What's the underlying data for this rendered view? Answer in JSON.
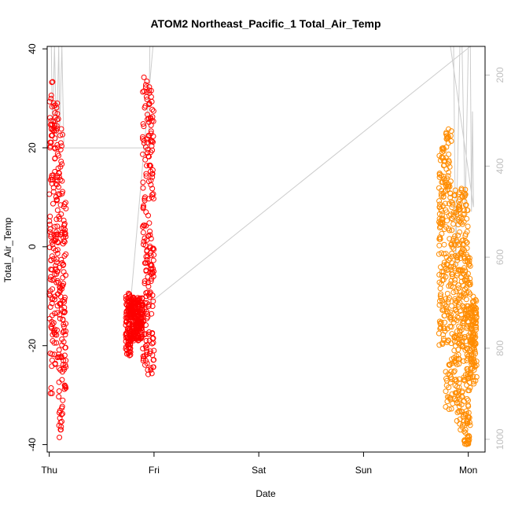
{
  "chart_data": {
    "type": "scatter",
    "title": "ATOM2 Northeast_Pacific_1 Total_Air_Temp",
    "xlabel": "Date",
    "ylabel": "Total_Air_Temp",
    "x_ticks": [
      "Thu",
      "Fri",
      "Sat",
      "Sun",
      "Mon"
    ],
    "xlim": [
      -0.02,
      4.16
    ],
    "ylim": [
      -41.5,
      40.5
    ],
    "y_ticks": [
      -40,
      -20,
      0,
      20,
      40
    ],
    "y2_ticks": [
      200,
      400,
      600,
      800,
      1000
    ],
    "y2lim": [
      1028,
      137
    ],
    "grid": false,
    "marker": "open-circle",
    "series": [
      {
        "color": "#ff0000",
        "segments": [
          {
            "x0": 0.0,
            "x1": 0.04,
            "y_min": -30,
            "y_max": 33.5
          },
          {
            "x0": 0.04,
            "x1": 0.09,
            "y_min": -24,
            "y_max": 29.5
          },
          {
            "x0": 0.09,
            "x1": 0.13,
            "y_min": -39,
            "y_max": 25
          },
          {
            "x0": 0.13,
            "x1": 0.16,
            "y_min": -29,
            "y_max": 9
          },
          {
            "x0": 0.73,
            "x1": 0.78,
            "y_min": -22,
            "y_max": -9
          },
          {
            "x0": 0.78,
            "x1": 0.89,
            "y_min": -19,
            "y_max": -10
          },
          {
            "x0": 0.89,
            "x1": 0.94,
            "y_min": -24,
            "y_max": 34.5
          },
          {
            "x0": 0.94,
            "x1": 0.98,
            "y_min": -26,
            "y_max": 37.5
          },
          {
            "x0": 0.98,
            "x1": 1.0,
            "y_min": -25,
            "y_max": 28
          }
        ]
      },
      {
        "color": "#ff8c00",
        "segments": [
          {
            "x0": 3.98,
            "x1": 4.02,
            "y_min": -40,
            "y_max": -1
          },
          {
            "x0": 4.02,
            "x1": 4.08,
            "y_min": -28,
            "y_max": -10
          },
          {
            "x0": 3.72,
            "x1": 3.78,
            "y_min": -20,
            "y_max": 20
          },
          {
            "x0": 3.78,
            "x1": 3.84,
            "y_min": -33,
            "y_max": 24
          },
          {
            "x0": 3.84,
            "x1": 3.92,
            "y_min": -36,
            "y_max": 12.5
          },
          {
            "x0": 3.92,
            "x1": 4.0,
            "y_min": -40,
            "y_max": 12
          }
        ]
      },
      {
        "color": "#cccccc",
        "type": "line",
        "axis": "right",
        "points": [
          [
            0.02,
            137
          ],
          [
            0.03,
            330
          ],
          [
            0.05,
            137
          ],
          [
            0.07,
            350
          ],
          [
            0.09,
            137
          ],
          [
            0.1,
            320
          ],
          [
            0.12,
            137
          ],
          [
            0.14,
            360
          ],
          [
            0.95,
            360
          ],
          [
            0.96,
            137
          ],
          [
            0.99,
            137
          ],
          [
            0.78,
            690
          ],
          [
            0.74,
            720
          ],
          [
            0.8,
            730
          ],
          [
            4.02,
            137
          ],
          [
            4.03,
            500
          ],
          [
            4.04,
            280
          ],
          [
            4.05,
            490
          ],
          [
            3.83,
            137
          ],
          [
            3.86,
            137
          ],
          [
            3.88,
            620
          ],
          [
            3.92,
            137
          ],
          [
            3.94,
            137
          ],
          [
            3.97,
            500
          ],
          [
            4.0,
            137
          ]
        ]
      }
    ]
  }
}
